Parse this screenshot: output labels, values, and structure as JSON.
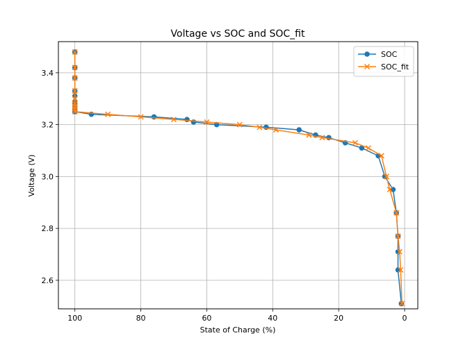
{
  "chart_data": {
    "type": "line",
    "title": "Voltage vs SOC and SOC_fit",
    "xlabel": "State of Charge (%)",
    "ylabel": "Voltage (V)",
    "xlim": [
      105,
      -4
    ],
    "ylim": [
      2.49,
      3.52
    ],
    "x_inverted": true,
    "grid": true,
    "legend_position": "top-right",
    "xticks": [
      100,
      80,
      60,
      40,
      20,
      0
    ],
    "yticks": [
      2.6,
      2.8,
      3.0,
      3.2,
      3.4
    ],
    "ytick_labels": [
      "2.6",
      "2.8",
      "3.0",
      "3.2",
      "3.4"
    ],
    "series": [
      {
        "name": "SOC",
        "color": "#1f77b4",
        "marker": "circle",
        "x": [
          100,
          100,
          100,
          100,
          100,
          100,
          100,
          100,
          100,
          100,
          100,
          95,
          76,
          66,
          64,
          57,
          42,
          32,
          27,
          23,
          18,
          13,
          8,
          6,
          3.5,
          2.5,
          2,
          2,
          2,
          1
        ],
        "y": [
          3.48,
          3.42,
          3.38,
          3.33,
          3.31,
          3.29,
          3.28,
          3.27,
          3.26,
          3.255,
          3.25,
          3.24,
          3.23,
          3.22,
          3.21,
          3.2,
          3.19,
          3.18,
          3.16,
          3.15,
          3.13,
          3.11,
          3.08,
          3.0,
          2.95,
          2.86,
          2.77,
          2.71,
          2.64,
          2.51
        ]
      },
      {
        "name": "SOC_fit",
        "color": "#ff7f0e",
        "marker": "x",
        "x": [
          100,
          100,
          100,
          100,
          100,
          100,
          100,
          100,
          100,
          90,
          80,
          70,
          60,
          50,
          44,
          39,
          29,
          25,
          15,
          11,
          7,
          5.5,
          4.5,
          2.5,
          2,
          1.5,
          1.2,
          0.8
        ],
        "y": [
          3.48,
          3.42,
          3.38,
          3.33,
          3.3,
          3.28,
          3.27,
          3.26,
          3.25,
          3.24,
          3.23,
          3.22,
          3.21,
          3.2,
          3.19,
          3.18,
          3.16,
          3.15,
          3.13,
          3.11,
          3.08,
          3.0,
          2.95,
          2.86,
          2.77,
          2.71,
          2.64,
          2.51
        ]
      }
    ]
  }
}
